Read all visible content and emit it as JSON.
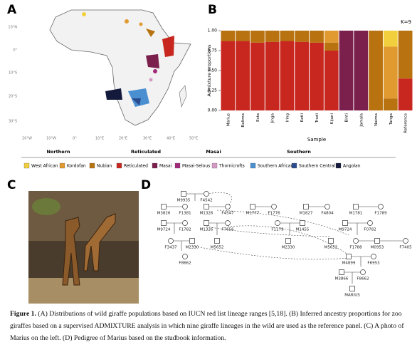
{
  "panel_labels": [
    "A",
    "B",
    "C",
    "D"
  ],
  "map": {
    "lat_labels": [
      "10°N",
      "0°",
      "10°S",
      "20°S",
      "30°S"
    ],
    "lon_labels": [
      "20°W",
      "10°W",
      "0°",
      "10°E",
      "20°E",
      "30°E",
      "40°E",
      "50°E"
    ]
  },
  "legend": {
    "groups": [
      "Northern",
      "Reticulated",
      "Masai",
      "Southern"
    ],
    "items": [
      {
        "label": "West African",
        "color": "#f2cf3c"
      },
      {
        "label": "Kordofan",
        "color": "#e09a30"
      },
      {
        "label": "Nubian",
        "color": "#b8720f"
      },
      {
        "label": "Reticulated",
        "color": "#c8271f"
      },
      {
        "label": "Masai",
        "color": "#7b1f4c"
      },
      {
        "label": "Masai-Selous",
        "color": "#a3297a"
      },
      {
        "label": "Thornicrofts",
        "color": "#d49ac4"
      },
      {
        "label": "Southern African",
        "color": "#4a8fd0"
      },
      {
        "label": "Southern Central",
        "color": "#2a4c8e"
      },
      {
        "label": "Angolan",
        "color": "#141a3c"
      }
    ]
  },
  "chart_data": {
    "type": "stacked-bar",
    "annotation": "K=9",
    "x_label": "Sample",
    "y_label": "Admixture proportions",
    "categories": [
      "Marius",
      "Baltma",
      "Esta",
      "Jinga",
      "Iring",
      "Retli",
      "Trudi",
      "Kijani",
      "Binti",
      "Jamala",
      "Naima",
      "Tanga",
      "Reference"
    ],
    "ylim": [
      0,
      1
    ],
    "yticks": [
      {
        "value": 0,
        "label": "0.00"
      },
      {
        "value": 0.25,
        "label": "0.25"
      },
      {
        "value": 0.5,
        "label": "0.50"
      },
      {
        "value": 0.75,
        "label": "0.75"
      },
      {
        "value": 1,
        "label": "1.00"
      }
    ],
    "series": [
      {
        "color": "#c8271f",
        "values": [
          0.87,
          0.87,
          0.85,
          0.86,
          0.87,
          0.86,
          0.85,
          0.75,
          0,
          0,
          0,
          0,
          0.4
        ]
      },
      {
        "color": "#7b1f4c",
        "values": [
          0,
          0,
          0,
          0,
          0,
          0,
          0,
          0,
          1,
          1,
          0,
          0,
          0
        ]
      },
      {
        "color": "#b8720f",
        "values": [
          0.13,
          0.13,
          0.15,
          0.14,
          0.13,
          0.14,
          0.15,
          0.1,
          0,
          0,
          1,
          0.15,
          0.6
        ]
      },
      {
        "color": "#e09a30",
        "values": [
          0,
          0,
          0,
          0,
          0,
          0,
          0,
          0.15,
          0,
          0,
          0,
          0.65,
          0
        ]
      },
      {
        "color": "#f2cf3c",
        "values": [
          0,
          0,
          0,
          0,
          0,
          0,
          0,
          0,
          0,
          0,
          0,
          0.2,
          0
        ]
      }
    ]
  },
  "pedigree": {
    "nodes": [
      "M9935",
      "F4542",
      "M3826",
      "F1381",
      "M1326",
      "F4547",
      "M1777",
      "F1776",
      "M1827",
      "F4804",
      "M1781",
      "F1789",
      "M9724",
      "F1782",
      "M1326",
      "F7656",
      "F1179",
      "M1455",
      "M9724",
      "F0782",
      "F3437",
      "M2330",
      "M5652",
      "M2330",
      "M5652",
      "F1788",
      "M0953",
      "F7405",
      "F8662",
      "M4899",
      "F6953",
      "M3866",
      "F8662",
      "MARIUS"
    ]
  },
  "caption": {
    "label": "Figure 1.",
    "text": "(A) Distributions of wild giraffe populations based on IUCN red list lineage ranges [5,18]. (B) Inferred ancestry proportions for zoo giraffes based on a supervised ADMIXTURE analysis in which nine giraffe lineages in the wild are used as the reference panel. (C) A photo of Marius on the left. (D) Pedigree of Marius based on the studbook information."
  }
}
